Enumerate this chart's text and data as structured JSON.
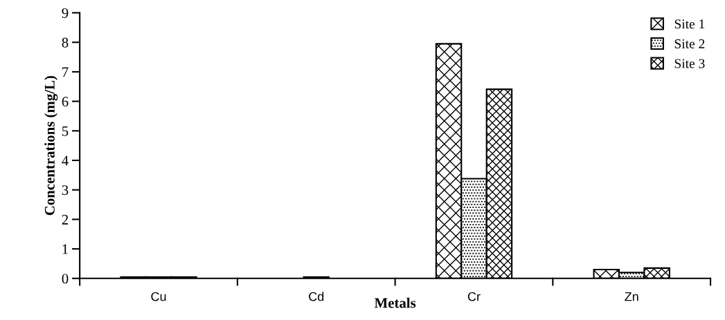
{
  "chart_data": {
    "type": "bar",
    "xlabel": "Metals",
    "ylabel": "Concentrations (mg/L)",
    "categories": [
      "Cu",
      "Cd",
      "Cr",
      "Zn"
    ],
    "series": [
      {
        "name": "Site 1",
        "color": "#000000",
        "values": [
          0.05,
          null,
          7.95,
          0.3
        ]
      },
      {
        "name": "Site 2",
        "color": "#000000",
        "values": [
          0.05,
          0.05,
          3.38,
          0.2
        ]
      },
      {
        "name": "Site 3",
        "color": "#000000",
        "values": [
          0.05,
          null,
          6.41,
          0.35
        ]
      }
    ],
    "ylim": [
      0,
      9
    ],
    "yticks": [
      0,
      1,
      2,
      3,
      4,
      5,
      6,
      7,
      8,
      9
    ],
    "grid": false,
    "legend": "top right"
  }
}
